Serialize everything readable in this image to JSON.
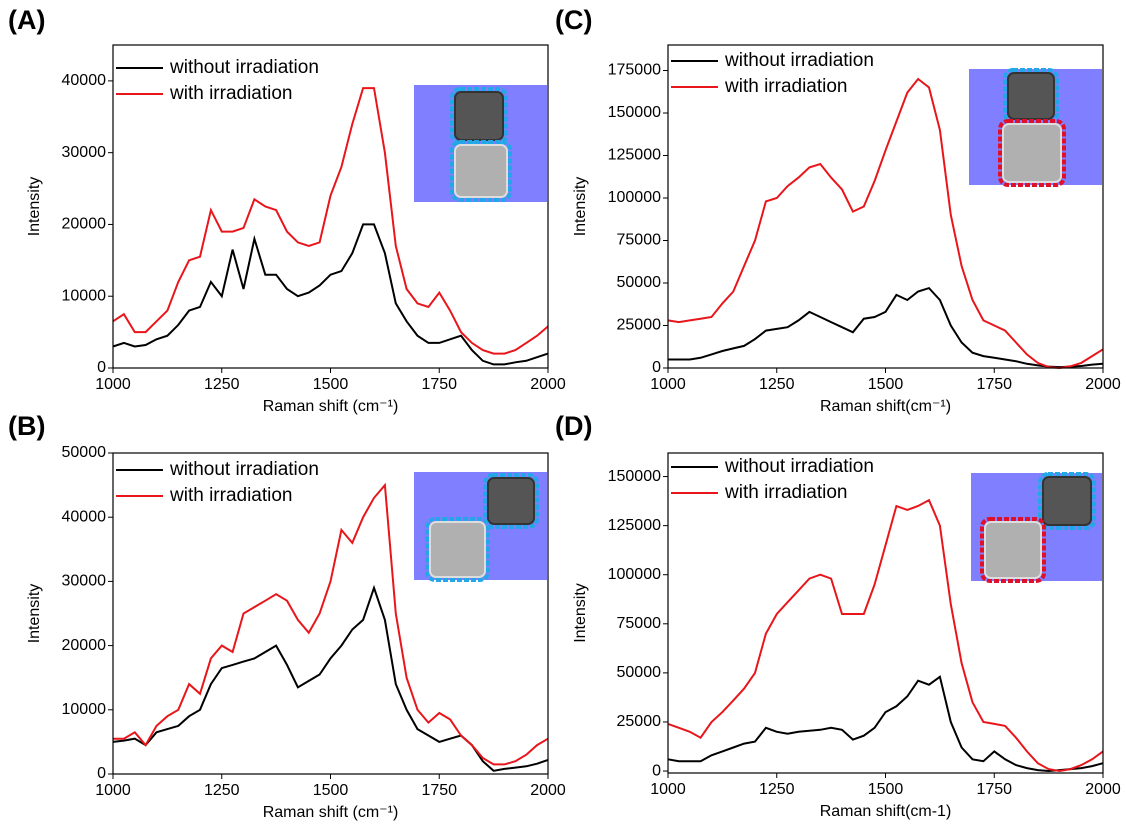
{
  "chart_data": [
    {
      "type": "line",
      "title": "(A)",
      "x_label": "Raman shift (cm⁻¹)",
      "y_label": "Intensity",
      "x": [
        1000,
        1025,
        1050,
        1075,
        1100,
        1125,
        1150,
        1175,
        1200,
        1225,
        1250,
        1275,
        1300,
        1325,
        1350,
        1375,
        1400,
        1425,
        1450,
        1475,
        1500,
        1525,
        1550,
        1575,
        1600,
        1625,
        1650,
        1675,
        1700,
        1725,
        1750,
        1775,
        1800,
        1825,
        1850,
        1875,
        1900,
        1925,
        1950,
        1975,
        2000
      ],
      "series": [
        {
          "name": "without irradiation",
          "color": "#000000",
          "values": [
            3000,
            3500,
            3000,
            3200,
            4000,
            4500,
            6000,
            8000,
            8500,
            12000,
            10000,
            16500,
            11000,
            18000,
            13000,
            13000,
            11000,
            10000,
            10500,
            11500,
            13000,
            13500,
            16000,
            20000,
            20000,
            16000,
            9000,
            6500,
            4500,
            3500,
            3500,
            4000,
            4500,
            2500,
            1000,
            500,
            500,
            800,
            1000,
            1500,
            2000
          ]
        },
        {
          "name": "with irradiation",
          "color": "#e8161b",
          "values": [
            6500,
            7500,
            5000,
            5000,
            6500,
            8000,
            12000,
            15000,
            15500,
            22000,
            19000,
            19000,
            19500,
            23500,
            22500,
            22000,
            19000,
            17500,
            17000,
            17500,
            24000,
            28000,
            34000,
            39000,
            39000,
            30000,
            17000,
            11000,
            9000,
            8500,
            10500,
            8000,
            5000,
            3500,
            2500,
            2000,
            2000,
            2500,
            3500,
            4500,
            5800
          ]
        }
      ],
      "xlim": [
        1000,
        2000
      ],
      "xticks": [
        1000,
        1250,
        1500,
        1750,
        2000
      ],
      "ylim": [
        0,
        45000
      ],
      "yticks": [
        0,
        10000,
        20000,
        30000,
        40000
      ]
    },
    {
      "type": "line",
      "title": "(B)",
      "x_label": "Raman shift (cm⁻¹)",
      "y_label": "Intensity",
      "x": [
        1000,
        1025,
        1050,
        1075,
        1100,
        1125,
        1150,
        1175,
        1200,
        1225,
        1250,
        1275,
        1300,
        1325,
        1350,
        1375,
        1400,
        1425,
        1450,
        1475,
        1500,
        1525,
        1550,
        1575,
        1600,
        1625,
        1650,
        1675,
        1700,
        1725,
        1750,
        1775,
        1800,
        1825,
        1850,
        1875,
        1900,
        1925,
        1950,
        1975,
        2000
      ],
      "series": [
        {
          "name": "without irradiation",
          "color": "#000000",
          "values": [
            5000,
            5200,
            5500,
            4500,
            6500,
            7000,
            7500,
            9000,
            10000,
            14000,
            16500,
            17000,
            17500,
            18000,
            19000,
            20000,
            17000,
            13500,
            14500,
            15500,
            18000,
            20000,
            22500,
            24000,
            29000,
            24000,
            14000,
            10000,
            7000,
            6000,
            5000,
            5500,
            6000,
            4500,
            2000,
            500,
            800,
            1000,
            1200,
            1600,
            2200
          ]
        },
        {
          "name": "with irradiation",
          "color": "#e8161b",
          "values": [
            5500,
            5500,
            6500,
            4500,
            7500,
            9000,
            10000,
            14000,
            12500,
            18000,
            20000,
            19000,
            25000,
            26000,
            27000,
            28000,
            27000,
            24000,
            22000,
            25000,
            30000,
            38000,
            36000,
            40000,
            43000,
            45000,
            25000,
            15000,
            10000,
            8000,
            9500,
            8500,
            6000,
            4500,
            2500,
            1500,
            1500,
            2000,
            3000,
            4500,
            5500
          ]
        }
      ],
      "xlim": [
        1000,
        2000
      ],
      "xticks": [
        1000,
        1250,
        1500,
        1750,
        2000
      ],
      "ylim": [
        0,
        50000
      ],
      "yticks": [
        0,
        10000,
        20000,
        30000,
        40000,
        50000
      ]
    },
    {
      "type": "line",
      "title": "(C)",
      "x_label": "Raman shift(cm⁻¹)",
      "y_label": "Intensity",
      "x": [
        1000,
        1025,
        1050,
        1075,
        1100,
        1125,
        1150,
        1175,
        1200,
        1225,
        1250,
        1275,
        1300,
        1325,
        1350,
        1375,
        1400,
        1425,
        1450,
        1475,
        1500,
        1525,
        1550,
        1575,
        1600,
        1625,
        1650,
        1675,
        1700,
        1725,
        1750,
        1775,
        1800,
        1825,
        1850,
        1875,
        1900,
        1925,
        1950,
        1975,
        2000
      ],
      "series": [
        {
          "name": "without irradiation",
          "color": "#000000",
          "values": [
            5000,
            5000,
            5000,
            6000,
            8000,
            10000,
            11500,
            13000,
            17000,
            22000,
            23000,
            24000,
            28000,
            33000,
            30000,
            27000,
            24000,
            21000,
            29000,
            30000,
            33000,
            43000,
            40000,
            45000,
            47000,
            40000,
            25000,
            15000,
            9000,
            7000,
            6000,
            5000,
            4000,
            2500,
            1500,
            800,
            500,
            800,
            1200,
            2000,
            2500
          ]
        },
        {
          "name": "with irradiation",
          "color": "#e8161b",
          "values": [
            28000,
            27000,
            28000,
            29000,
            30000,
            38000,
            45000,
            60000,
            75000,
            98000,
            100000,
            107000,
            112000,
            118000,
            120000,
            112000,
            105000,
            92000,
            95000,
            110000,
            128000,
            145000,
            162000,
            170000,
            165000,
            140000,
            90000,
            60000,
            40000,
            28000,
            25000,
            22000,
            15000,
            8000,
            3000,
            500,
            0,
            1000,
            3000,
            7000,
            11000
          ]
        }
      ],
      "xlim": [
        1000,
        2000
      ],
      "xticks": [
        1000,
        1250,
        1500,
        1750,
        2000
      ],
      "ylim": [
        0,
        190000
      ],
      "yticks": [
        0,
        25000,
        50000,
        75000,
        100000,
        125000,
        150000,
        175000
      ]
    },
    {
      "type": "line",
      "title": "(D)",
      "x_label": "Raman shift(cm-1)",
      "y_label": "Intensity",
      "x": [
        1000,
        1025,
        1050,
        1075,
        1100,
        1125,
        1150,
        1175,
        1200,
        1225,
        1250,
        1275,
        1300,
        1325,
        1350,
        1375,
        1400,
        1425,
        1450,
        1475,
        1500,
        1525,
        1550,
        1575,
        1600,
        1625,
        1650,
        1675,
        1700,
        1725,
        1750,
        1775,
        1800,
        1825,
        1850,
        1875,
        1900,
        1925,
        1950,
        1975,
        2000
      ],
      "series": [
        {
          "name": "without irradiation",
          "color": "#000000",
          "values": [
            6000,
            5000,
            5000,
            5000,
            8000,
            10000,
            12000,
            14000,
            15000,
            22000,
            20000,
            19000,
            20000,
            20500,
            21000,
            22000,
            21000,
            16000,
            18000,
            22000,
            30000,
            33000,
            38000,
            46000,
            44000,
            48000,
            25000,
            12000,
            6000,
            5000,
            10000,
            6000,
            3000,
            1500,
            500,
            0,
            500,
            1000,
            1500,
            2500,
            4000
          ]
        },
        {
          "name": "with irradiation",
          "color": "#e8161b",
          "values": [
            24000,
            22000,
            20000,
            17000,
            25000,
            30000,
            36000,
            42000,
            50000,
            70000,
            80000,
            86000,
            92000,
            98000,
            100000,
            98000,
            80000,
            80000,
            80000,
            95000,
            115000,
            135000,
            133000,
            135000,
            138000,
            125000,
            85000,
            55000,
            35000,
            25000,
            24000,
            23000,
            17000,
            10000,
            4000,
            1000,
            0,
            1000,
            3000,
            6000,
            10000
          ]
        }
      ],
      "xlim": [
        1000,
        2000
      ],
      "xticks": [
        1000,
        1250,
        1500,
        1750,
        2000
      ],
      "ylim": [
        -1000,
        162000
      ],
      "yticks": [
        0,
        25000,
        50000,
        75000,
        100000,
        125000,
        150000
      ]
    }
  ]
}
